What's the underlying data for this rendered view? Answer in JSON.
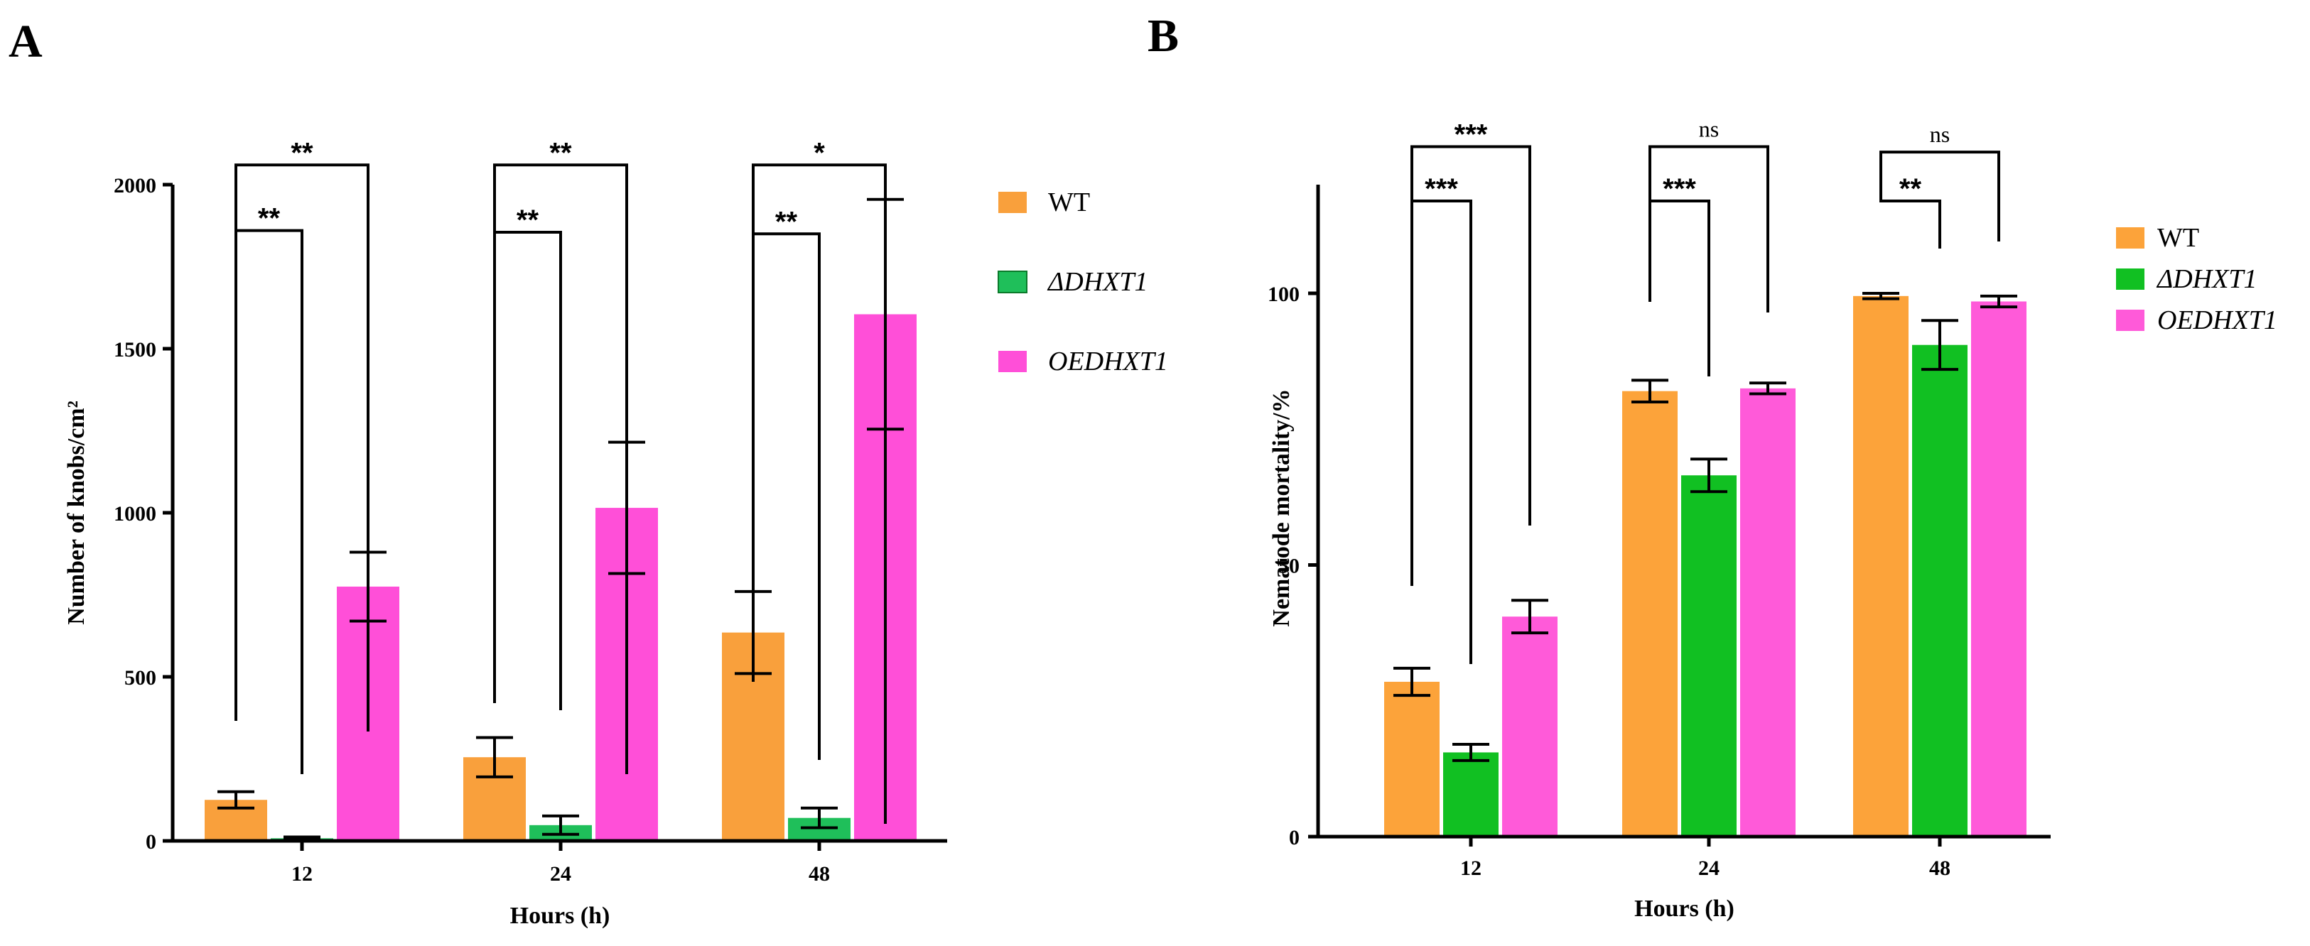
{
  "chart_data": [
    {
      "panel": "A",
      "type": "bar",
      "xlabel": "Hours (h)",
      "ylabel": "Number of knobs/cm²",
      "ylim": [
        0,
        2000
      ],
      "yticks": [
        0,
        500,
        1000,
        1500,
        2000
      ],
      "categories": [
        "12",
        "24",
        "48"
      ],
      "series": [
        {
          "name": "WT",
          "color": "#f9a03c",
          "values": [
            125,
            255,
            635
          ],
          "errors": [
            25,
            60,
            125
          ]
        },
        {
          "name": "ΔDHXT1",
          "color": "#1fbf5a",
          "values": [
            8,
            48,
            70
          ],
          "errors": [
            4,
            28,
            30
          ]
        },
        {
          "name": "OEDHXT1",
          "color": "#ff4fd8",
          "values": [
            775,
            1015,
            1605
          ],
          "errors": [
            105,
            200,
            350
          ]
        }
      ],
      "significance": [
        {
          "category": "12",
          "from": 0,
          "to": 1,
          "label": "**",
          "level": 1860
        },
        {
          "category": "12",
          "from": 0,
          "to": 2,
          "label": "**",
          "level": 2060
        },
        {
          "category": "24",
          "from": 0,
          "to": 1,
          "label": "**",
          "level": 1855
        },
        {
          "category": "24",
          "from": 0,
          "to": 2,
          "label": "**",
          "level": 2060
        },
        {
          "category": "48",
          "from": 0,
          "to": 1,
          "label": "**",
          "level": 1850
        },
        {
          "category": "48",
          "from": 0,
          "to": 2,
          "label": "*",
          "level": 2060
        }
      ]
    },
    {
      "panel": "B",
      "type": "bar",
      "xlabel": "Hours (h)",
      "ylabel": "Nematode mortality/%",
      "ylim": [
        0,
        120
      ],
      "yticks": [
        0,
        50,
        100
      ],
      "categories": [
        "12",
        "24",
        "48"
      ],
      "series": [
        {
          "name": "WT",
          "color": "#fca33a",
          "values": [
            28.5,
            82,
            99.5
          ],
          "errors": [
            2.5,
            2,
            0.5
          ]
        },
        {
          "name": "ΔDHXT1",
          "color": "#11c022",
          "values": [
            15.5,
            66.5,
            90.5
          ],
          "errors": [
            1.5,
            3,
            4.5
          ]
        },
        {
          "name": "OEDHXT1",
          "color": "#ff5ad9",
          "values": [
            40.5,
            82.5,
            98.5
          ],
          "errors": [
            3,
            1,
            1
          ]
        }
      ],
      "significance": [
        {
          "category": "12",
          "from": 0,
          "to": 1,
          "label": "***",
          "level": 117
        },
        {
          "category": "12",
          "from": 0,
          "to": 2,
          "label": "***",
          "level": 127
        },
        {
          "category": "24",
          "from": 0,
          "to": 1,
          "label": "***",
          "level": 117
        },
        {
          "category": "24",
          "from": 0,
          "to": 2,
          "label": "ns",
          "level": 127
        },
        {
          "category": "48",
          "from": 0,
          "to": 1,
          "label": "**",
          "level": 117
        },
        {
          "category": "48",
          "from": 0,
          "to": 2,
          "label": "ns",
          "level": 126
        }
      ]
    }
  ]
}
